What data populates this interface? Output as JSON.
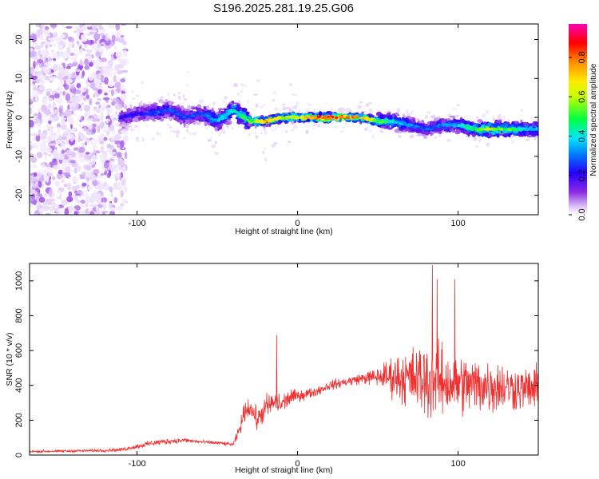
{
  "title": "S196.2025.281.19.25.G06",
  "chart_data": [
    {
      "type": "heatmap",
      "name": "spectrogram",
      "xlabel": "Height of straight line (km)",
      "ylabel": "Frequency (Hz)",
      "xlim": [
        -167,
        150
      ],
      "ylim": [
        -25,
        24
      ],
      "xticks": [
        -100,
        0,
        100
      ],
      "yticks": [
        -20,
        -10,
        0,
        10,
        20
      ],
      "colorbar": {
        "label": "Normalized spectral amplitude",
        "range": [
          0,
          0.97
        ],
        "ticks": [
          0.0,
          0.2,
          0.4,
          0.6,
          0.8
        ],
        "colormap": [
          "#ffffff",
          "#d6b8f5",
          "#8a2be2",
          "#2400ff",
          "#0080ff",
          "#00e5ff",
          "#00ff40",
          "#c8ff00",
          "#ffea00",
          "#ff8c00",
          "#ff0000",
          "#ff00b4"
        ]
      },
      "ridge": {
        "x": [
          -110,
          -100,
          -90,
          -80,
          -70,
          -60,
          -50,
          -40,
          -30,
          -20,
          -10,
          0,
          10,
          20,
          30,
          40,
          50,
          60,
          70,
          80,
          90,
          100,
          110,
          120,
          130,
          140,
          150
        ],
        "frequency": [
          0,
          1,
          1,
          2,
          0,
          1,
          -1,
          2,
          -1,
          -1,
          0,
          0,
          0,
          0,
          0,
          0,
          -1,
          -1,
          -2,
          -3,
          -2,
          -2,
          -3,
          -3,
          -3,
          -3,
          -3
        ],
        "peak_amplitude": [
          0.3,
          0.3,
          0.35,
          0.35,
          0.35,
          0.35,
          0.45,
          0.5,
          0.6,
          0.85,
          0.7,
          0.75,
          0.85,
          0.95,
          0.85,
          0.85,
          0.6,
          0.5,
          0.4,
          0.35,
          0.4,
          0.45,
          0.6,
          0.7,
          0.6,
          0.5,
          0.45
        ]
      }
    },
    {
      "type": "line",
      "name": "snr",
      "xlabel": "Height of straight line (km)",
      "ylabel": "SNR (10 * v/v)",
      "xlim": [
        -167,
        150
      ],
      "ylim": [
        0,
        1100
      ],
      "xticks": [
        -100,
        0,
        100
      ],
      "yticks": [
        0,
        200,
        400,
        600,
        800,
        1000
      ],
      "color": "#f03030",
      "x": [
        -167,
        -150,
        -130,
        -110,
        -100,
        -90,
        -80,
        -70,
        -60,
        -50,
        -40,
        -36,
        -33,
        -30,
        -25,
        -20,
        -15,
        -10,
        -5,
        0,
        10,
        20,
        30,
        40,
        50,
        60,
        70,
        80,
        90,
        100,
        110,
        120,
        130,
        140,
        150
      ],
      "mean": [
        20,
        22,
        25,
        30,
        50,
        70,
        80,
        85,
        75,
        70,
        60,
        150,
        250,
        280,
        200,
        270,
        300,
        290,
        330,
        340,
        360,
        400,
        420,
        440,
        450,
        450,
        440,
        430,
        420,
        410,
        400,
        400,
        390,
        380,
        380
      ],
      "amplitude": [
        10,
        10,
        12,
        15,
        20,
        25,
        25,
        20,
        15,
        15,
        15,
        60,
        80,
        90,
        90,
        110,
        100,
        90,
        70,
        50,
        40,
        40,
        40,
        45,
        80,
        180,
        250,
        320,
        300,
        260,
        240,
        240,
        200,
        180,
        180
      ],
      "peaks": [
        {
          "x": -13,
          "y": 690
        },
        {
          "x": 84,
          "y": 1090
        },
        {
          "x": 87,
          "y": 1010
        },
        {
          "x": 98,
          "y": 1010
        }
      ]
    }
  ]
}
